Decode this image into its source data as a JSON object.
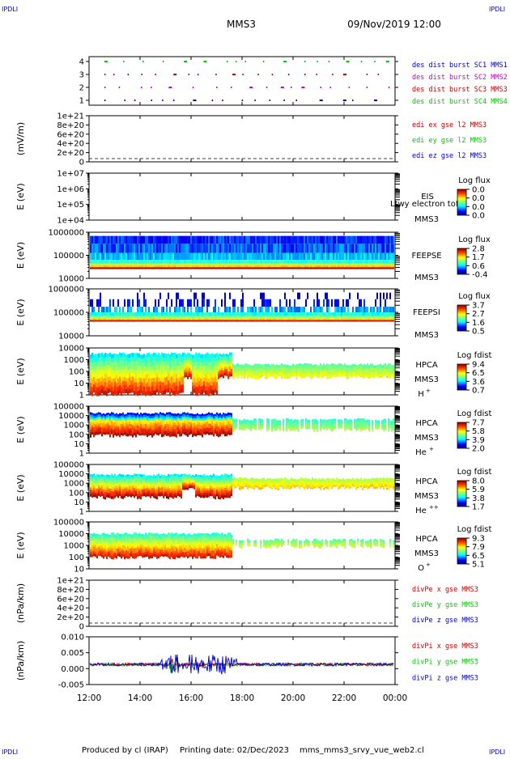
{
  "header": {
    "corner_left": "IPDLI",
    "corner_right": "IPDLI",
    "title": "MMS3",
    "datetime": "09/Nov/2019 12:00"
  },
  "footer": {
    "produced": "Produced by cl (IRAP)",
    "printing": "Printing date: 02/Dec/2023",
    "file": "mms_mms3_srvy_vue_web2.cl",
    "corner_left": "IPDLI",
    "corner_right": "IPDLI"
  },
  "colors": {
    "blue": "#0000c8",
    "green": "#00c800",
    "red": "#c80000",
    "magenta": "#c800c8"
  },
  "chart_data": [
    {
      "type": "scatter",
      "panel": "burst",
      "yticks": [
        "1",
        "2",
        "3",
        "4"
      ],
      "legend": [
        {
          "label": "des dist burst SC1 MMS1",
          "color": "#0000c8"
        },
        {
          "label": "des dist burst SC2 MMS2",
          "color": "#c800c8"
        },
        {
          "label": "des dist burst SC3 MMS3",
          "color": "#c80000"
        },
        {
          "label": "des dist burst SC4 MMS4",
          "color": "#00c800"
        }
      ]
    },
    {
      "type": "line",
      "panel": "edi",
      "ylabel": "(mV/m)",
      "yticks": [
        "0",
        "2e+20",
        "4e+20",
        "6e+20",
        "8e+20",
        "1e+21"
      ],
      "legend": [
        {
          "label": "edi ex gse l2 MMS3",
          "color": "#c80000"
        },
        {
          "label": "edi ey gse l2 MMS3",
          "color": "#00c800"
        },
        {
          "label": "edi ez gse l2 MMS3",
          "color": "#0000c8"
        }
      ]
    },
    {
      "type": "heatmap",
      "panel": "eis",
      "ylabel": "E (eV)",
      "yticks": [
        "1e+04",
        "1e+05",
        "1e+06",
        "1e+07"
      ],
      "instrument": "EIS",
      "spacecraft": "MMS3",
      "note": "Ltwy electron tof",
      "colorbar_title": "Log flux",
      "colorbar_ticks": [
        "0.0",
        "0.0",
        "0.0",
        "0.0"
      ]
    },
    {
      "type": "heatmap",
      "panel": "feepse",
      "ylabel": "E (eV)",
      "yticks": [
        "10000",
        "100000",
        "1000000"
      ],
      "instrument": "FEEPSE",
      "spacecraft": "MMS3",
      "colorbar_title": "Log flux",
      "colorbar_ticks": [
        "2.8",
        "1.7",
        "0.6",
        "-0.4"
      ]
    },
    {
      "type": "heatmap",
      "panel": "feepsi",
      "ylabel": "E (eV)",
      "yticks": [
        "10000",
        "100000",
        "1000000"
      ],
      "instrument": "FEEPSI",
      "spacecraft": "MMS3",
      "colorbar_title": "Log flux",
      "colorbar_ticks": [
        "3.7",
        "2.7",
        "1.6",
        "0.5"
      ]
    },
    {
      "type": "heatmap",
      "panel": "hpca_h",
      "ylabel": "E (eV)",
      "yticks": [
        "1",
        "10",
        "100",
        "1000",
        "10000"
      ],
      "instrument": "HPCA",
      "spacecraft": "MMS3",
      "species": "H",
      "charge": "+",
      "colorbar_title": "Log fdist",
      "colorbar_ticks": [
        "9.4",
        "6.5",
        "3.6",
        "0.7"
      ]
    },
    {
      "type": "heatmap",
      "panel": "hpca_he",
      "ylabel": "E (eV)",
      "yticks": [
        "1",
        "10",
        "100",
        "1000",
        "10000",
        "100000"
      ],
      "instrument": "HPCA",
      "spacecraft": "MMS3",
      "species": "He",
      "charge": "+",
      "colorbar_title": "Log fdist",
      "colorbar_ticks": [
        "7.7",
        "5.8",
        "3.9",
        "2.0"
      ]
    },
    {
      "type": "heatmap",
      "panel": "hpca_hepp",
      "ylabel": "E (eV)",
      "yticks": [
        "1",
        "10",
        "100",
        "1000",
        "10000",
        "100000"
      ],
      "instrument": "HPCA",
      "spacecraft": "MMS3",
      "species": "He",
      "charge": "++",
      "colorbar_title": "Log fdist",
      "colorbar_ticks": [
        "8.0",
        "5.9",
        "3.8",
        "1.7"
      ]
    },
    {
      "type": "heatmap",
      "panel": "hpca_o",
      "ylabel": "E (eV)",
      "yticks": [
        "10",
        "100",
        "1000",
        "10000",
        "100000"
      ],
      "instrument": "HPCA",
      "spacecraft": "MMS3",
      "species": "O",
      "charge": "+",
      "colorbar_title": "Log fdist",
      "colorbar_ticks": [
        "9.3",
        "7.9",
        "6.5",
        "5.1"
      ]
    },
    {
      "type": "line",
      "panel": "divpe",
      "ylabel": "(nPa/km)",
      "yticks": [
        "0",
        "2e+20",
        "4e+20",
        "6e+20",
        "8e+20",
        "1e+21"
      ],
      "legend": [
        {
          "label": "divPe x gse MMS3",
          "color": "#c80000"
        },
        {
          "label": "divPe y gse MMS3",
          "color": "#00c800"
        },
        {
          "label": "divPe z gse MMS3",
          "color": "#0000c8"
        }
      ]
    },
    {
      "type": "line",
      "panel": "divpi",
      "ylabel": "(nPa/km)",
      "yticks": [
        "-0.005",
        "0.000",
        "0.005",
        "0.010"
      ],
      "ylim": [
        -0.008,
        0.011
      ],
      "legend": [
        {
          "label": "divPi x gse MMS3",
          "color": "#c80000"
        },
        {
          "label": "divPi y gse MMS3",
          "color": "#00c800"
        },
        {
          "label": "divPi z gse MMS3",
          "color": "#0000c8"
        }
      ]
    }
  ],
  "xaxis": {
    "ticks": [
      "12:00",
      "14:00",
      "16:00",
      "18:00",
      "20:00",
      "22:00",
      "00:00"
    ]
  }
}
